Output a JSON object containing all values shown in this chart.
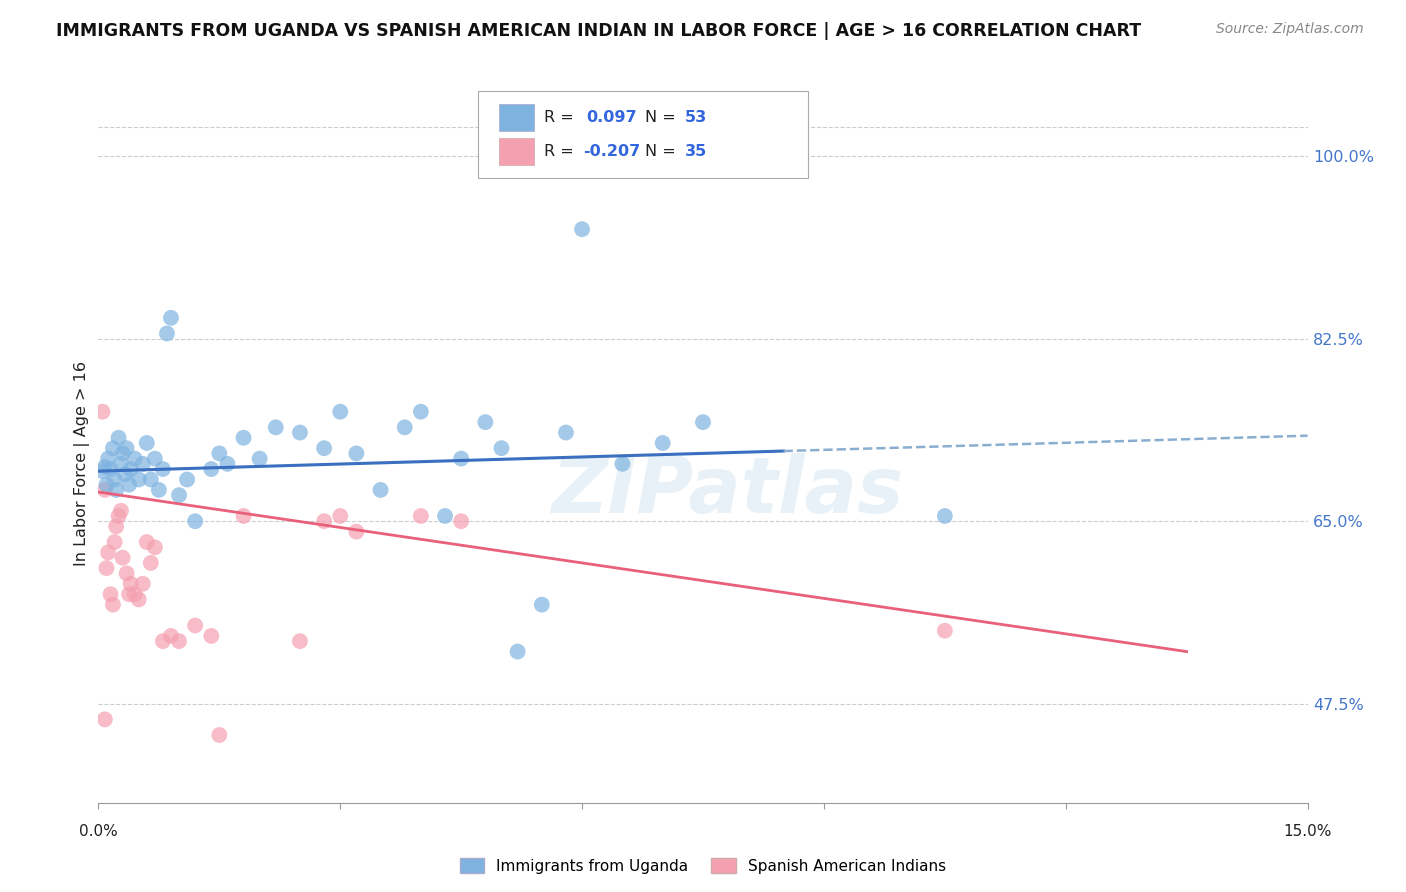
{
  "title": "IMMIGRANTS FROM UGANDA VS SPANISH AMERICAN INDIAN IN LABOR FORCE | AGE > 16 CORRELATION CHART",
  "source": "Source: ZipAtlas.com",
  "ylabel": "In Labor Force | Age > 16",
  "y_ticks": [
    47.5,
    65.0,
    82.5,
    100.0
  ],
  "y_tick_labels": [
    "47.5%",
    "65.0%",
    "82.5%",
    "100.0%"
  ],
  "x_min": 0.0,
  "x_max": 15.0,
  "y_min": 38.0,
  "y_max": 103.0,
  "blue_color": "#7EB3E0",
  "pink_color": "#F4A0B0",
  "blue_line_color": "#3B6FBF",
  "pink_line_color": "#E8607A",
  "blue_scatter": [
    [
      0.05,
      69.8
    ],
    [
      0.08,
      70.2
    ],
    [
      0.1,
      68.5
    ],
    [
      0.12,
      71.0
    ],
    [
      0.15,
      70.0
    ],
    [
      0.18,
      72.0
    ],
    [
      0.2,
      69.0
    ],
    [
      0.22,
      68.0
    ],
    [
      0.25,
      73.0
    ],
    [
      0.28,
      70.5
    ],
    [
      0.3,
      71.5
    ],
    [
      0.33,
      69.5
    ],
    [
      0.35,
      72.0
    ],
    [
      0.38,
      68.5
    ],
    [
      0.4,
      70.0
    ],
    [
      0.45,
      71.0
    ],
    [
      0.5,
      69.0
    ],
    [
      0.55,
      70.5
    ],
    [
      0.6,
      72.5
    ],
    [
      0.65,
      69.0
    ],
    [
      0.7,
      71.0
    ],
    [
      0.75,
      68.0
    ],
    [
      0.8,
      70.0
    ],
    [
      0.85,
      83.0
    ],
    [
      0.9,
      84.5
    ],
    [
      1.0,
      67.5
    ],
    [
      1.1,
      69.0
    ],
    [
      1.2,
      65.0
    ],
    [
      1.4,
      70.0
    ],
    [
      1.5,
      71.5
    ],
    [
      1.6,
      70.5
    ],
    [
      1.8,
      73.0
    ],
    [
      2.0,
      71.0
    ],
    [
      2.2,
      74.0
    ],
    [
      2.5,
      73.5
    ],
    [
      2.8,
      72.0
    ],
    [
      3.0,
      75.5
    ],
    [
      3.2,
      71.5
    ],
    [
      3.5,
      68.0
    ],
    [
      3.8,
      74.0
    ],
    [
      4.0,
      75.5
    ],
    [
      4.3,
      65.5
    ],
    [
      4.5,
      71.0
    ],
    [
      4.8,
      74.5
    ],
    [
      5.0,
      72.0
    ],
    [
      5.5,
      57.0
    ],
    [
      5.8,
      73.5
    ],
    [
      6.0,
      93.0
    ],
    [
      6.5,
      70.5
    ],
    [
      7.0,
      72.5
    ],
    [
      7.5,
      74.5
    ],
    [
      10.5,
      65.5
    ],
    [
      5.2,
      52.5
    ]
  ],
  "pink_scatter": [
    [
      0.05,
      75.5
    ],
    [
      0.08,
      68.0
    ],
    [
      0.1,
      60.5
    ],
    [
      0.12,
      62.0
    ],
    [
      0.15,
      58.0
    ],
    [
      0.18,
      57.0
    ],
    [
      0.2,
      63.0
    ],
    [
      0.22,
      64.5
    ],
    [
      0.25,
      65.5
    ],
    [
      0.28,
      66.0
    ],
    [
      0.3,
      61.5
    ],
    [
      0.35,
      60.0
    ],
    [
      0.38,
      58.0
    ],
    [
      0.4,
      59.0
    ],
    [
      0.45,
      58.0
    ],
    [
      0.5,
      57.5
    ],
    [
      0.55,
      59.0
    ],
    [
      0.6,
      63.0
    ],
    [
      0.65,
      61.0
    ],
    [
      0.7,
      62.5
    ],
    [
      0.8,
      53.5
    ],
    [
      0.9,
      54.0
    ],
    [
      1.0,
      53.5
    ],
    [
      1.2,
      55.0
    ],
    [
      1.4,
      54.0
    ],
    [
      1.5,
      44.5
    ],
    [
      1.8,
      65.5
    ],
    [
      2.5,
      53.5
    ],
    [
      2.8,
      65.0
    ],
    [
      3.0,
      65.5
    ],
    [
      3.2,
      64.0
    ],
    [
      4.0,
      65.5
    ],
    [
      4.5,
      65.0
    ],
    [
      10.5,
      54.5
    ],
    [
      0.08,
      46.0
    ]
  ],
  "blue_trend_x0": 0.0,
  "blue_trend_y0": 69.8,
  "blue_trend_x1": 15.0,
  "blue_trend_y1": 73.2,
  "blue_solid_end_x": 8.5,
  "pink_trend_x0": 0.0,
  "pink_trend_y0": 67.8,
  "pink_trend_x1": 13.5,
  "pink_trend_y1": 52.5,
  "watermark": "ZIPatlas",
  "background_color": "#ffffff",
  "grid_color": "#cccccc"
}
